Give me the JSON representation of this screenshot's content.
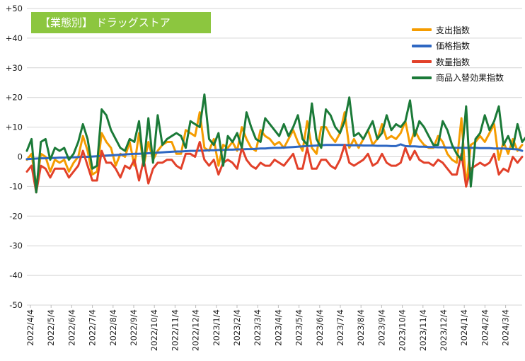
{
  "chart_data": {
    "type": "line",
    "title": "【業態別】 ドラッグストア",
    "ylim": [
      -50,
      50
    ],
    "yticks": [
      {
        "value": 50,
        "label": "+50"
      },
      {
        "value": 40,
        "label": "+40"
      },
      {
        "value": 30,
        "label": "+30"
      },
      {
        "value": 20,
        "label": "+20"
      },
      {
        "value": 10,
        "label": "+10"
      },
      {
        "value": 0,
        "label": "0"
      },
      {
        "value": -10,
        "label": "-10"
      },
      {
        "value": -20,
        "label": "-20"
      },
      {
        "value": -30,
        "label": "-30"
      },
      {
        "value": -40,
        "label": "-40"
      },
      {
        "value": -50,
        "label": "-50"
      }
    ],
    "xtick_labels": [
      "2022/4/4",
      "2022/5/4",
      "2022/6/4",
      "2022/7/4",
      "2022/8/4",
      "2022/9/4",
      "2022/10/4",
      "2022/11/4",
      "2022/12/4",
      "2023/1/4",
      "2023/2/4",
      "2023/3/4",
      "2023/4/4",
      "2023/5/4",
      "2023/6/4",
      "2023/7/4",
      "2023/8/4",
      "2023/9/4",
      "2023/10/4",
      "2023/11/4",
      "2023/12/4",
      "2024/1/4",
      "2024/2/4",
      "2024/3/4"
    ],
    "grid": "horizontal",
    "legend": "top-right",
    "series": [
      {
        "name": "支出指数",
        "color": "#f59c00",
        "values": [
          -1,
          1,
          -10,
          1,
          0,
          -5,
          -1,
          -2,
          -1,
          -5,
          -2,
          0,
          7,
          2,
          -6,
          -5,
          8,
          5,
          3,
          -3,
          1,
          0,
          5,
          -3,
          8,
          -3,
          5,
          -1,
          2,
          4,
          5,
          5,
          1,
          1,
          9,
          8,
          7,
          15,
          3,
          2,
          6,
          -3,
          4,
          3,
          5,
          2,
          10,
          6,
          3,
          2,
          9,
          7,
          6,
          4,
          5,
          3,
          6,
          9,
          5,
          2,
          12,
          3,
          1,
          10,
          10,
          7,
          5,
          8,
          15,
          3,
          6,
          3,
          6,
          9,
          4,
          6,
          11,
          6,
          7,
          6,
          8,
          12,
          4,
          9,
          6,
          4,
          3,
          3,
          7,
          5,
          1,
          -1,
          -2,
          13,
          -10,
          4,
          5,
          7,
          5,
          8,
          11,
          -1,
          5,
          1,
          6,
          2,
          4
        ]
      },
      {
        "name": "価格指数",
        "color": "#2e67c2",
        "values": [
          -0.8,
          -0.7,
          -0.6,
          -0.5,
          -0.5,
          -0.4,
          -0.4,
          -0.3,
          -0.3,
          -0.2,
          -0.2,
          -0.1,
          0,
          0,
          0.1,
          0.2,
          0.3,
          0.4,
          0.5,
          0.6,
          0.7,
          0.8,
          0.9,
          1,
          1,
          1.1,
          1.2,
          1.3,
          1.4,
          1.5,
          1.6,
          1.7,
          1.8,
          1.8,
          1.9,
          2,
          2,
          2.1,
          2.1,
          2.2,
          2.2,
          2.3,
          2.3,
          2.4,
          2.4,
          2.5,
          2.5,
          2.6,
          2.6,
          2.7,
          2.8,
          2.8,
          2.9,
          3,
          3,
          3.1,
          3.2,
          3.3,
          3.4,
          3.5,
          3.6,
          3.7,
          3.8,
          3.9,
          4,
          4,
          4,
          4,
          4,
          3.9,
          3.9,
          3.9,
          3.8,
          3.8,
          3.8,
          3.7,
          3.7,
          3.7,
          3.6,
          3.6,
          4.2,
          3.6,
          3.5,
          3.5,
          3.4,
          3.4,
          3.3,
          3.3,
          3.2,
          3.2,
          3.1,
          3.1,
          3,
          3,
          3,
          3,
          3,
          2.9,
          2.9,
          2.9,
          2.8,
          2.8,
          2.8,
          2.7,
          2.6,
          2.5,
          2
        ]
      },
      {
        "name": "数量指数",
        "color": "#e2412a",
        "values": [
          -5,
          -3,
          -12,
          -3,
          -4,
          -7,
          -4,
          -4,
          -4,
          -7,
          -5,
          -3,
          2,
          -3,
          -8,
          -8,
          2,
          -2,
          -2,
          -4,
          -7,
          -3,
          -4,
          -1,
          -8,
          -1,
          -9,
          -4,
          -2,
          -2,
          -1,
          -1,
          -3,
          -4,
          1,
          1,
          0,
          5,
          -1,
          -3,
          -1,
          -6,
          -2,
          -1,
          -2,
          -4,
          3,
          -1,
          -3,
          -4,
          -2,
          -3,
          -3,
          -1,
          -2,
          -3,
          -1,
          1,
          -4,
          -4,
          3,
          -4,
          -4,
          -1,
          -1,
          -3,
          -4,
          -1,
          4,
          -2,
          -3,
          -2,
          -1,
          1,
          -3,
          -2,
          1,
          -2,
          -3,
          -3,
          -2,
          3,
          -1,
          2,
          -1,
          -2,
          -2,
          -3,
          -1,
          -2,
          -4,
          -6,
          -6,
          1,
          -10,
          -4,
          -3,
          -2,
          -3,
          -2,
          1,
          -6,
          -4,
          -5,
          0,
          -2,
          0
        ]
      },
      {
        "name": "商品入替効果指数",
        "color": "#1b7a38",
        "values": [
          2,
          6,
          -12,
          5,
          6,
          -1,
          3,
          2,
          3,
          -1,
          1,
          5,
          11,
          6,
          -4,
          -3,
          16,
          14,
          9,
          6,
          3,
          2,
          6,
          5,
          12,
          -3,
          13,
          -2,
          14,
          4,
          6,
          7,
          8,
          7,
          3,
          12,
          11,
          10,
          21,
          6,
          4,
          8,
          -3,
          7,
          5,
          8,
          3,
          15,
          10,
          6,
          5,
          13,
          11,
          9,
          7,
          11,
          7,
          10,
          14,
          6,
          4,
          18,
          6,
          3,
          16,
          14,
          10,
          8,
          12,
          20,
          7,
          8,
          6,
          9,
          12,
          6,
          8,
          14,
          9,
          11,
          10,
          12,
          19,
          7,
          12,
          10,
          7,
          4,
          4,
          12,
          9,
          4,
          1,
          -1,
          17,
          -10,
          6,
          8,
          14,
          9,
          12,
          17,
          4,
          7,
          3,
          11,
          5,
          7
        ]
      }
    ]
  }
}
